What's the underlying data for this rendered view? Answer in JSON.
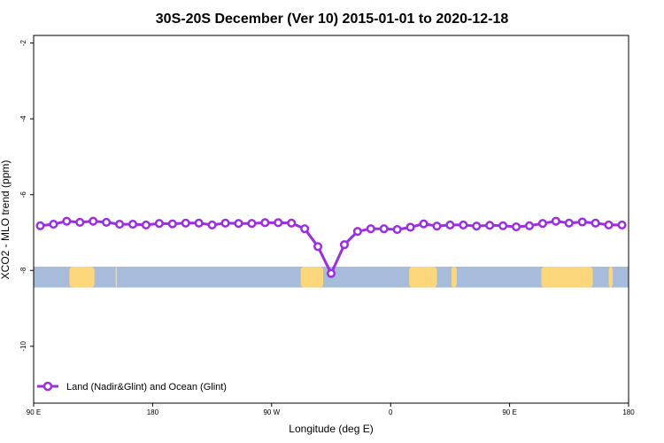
{
  "chart_data": {
    "type": "line",
    "title": "30S-20S December (Ver 10)   2015-01-01 to 2020-12-18",
    "xlabel": "Longitude (deg E)",
    "ylabel": "XCO2 - MLO trend (ppm)",
    "x_ticks": [
      {
        "x": 90,
        "label": "90 E"
      },
      {
        "x": 180,
        "label": "180"
      },
      {
        "x": 270,
        "label": "90 W"
      },
      {
        "x": 360,
        "label": "0"
      },
      {
        "x": 450,
        "label": "90 E"
      },
      {
        "x": 540,
        "label": "180"
      }
    ],
    "y_ticks": [
      {
        "y": -2,
        "label": "-2"
      },
      {
        "y": -4,
        "label": "-4"
      },
      {
        "y": -6,
        "label": "-6"
      },
      {
        "y": -8,
        "label": "-8"
      },
      {
        "y": -10,
        "label": "-10"
      }
    ],
    "xlim": [
      90,
      540
    ],
    "ylim": [
      -11.5,
      -1.8
    ],
    "grid": false,
    "legend_position": "bottom-left",
    "series": [
      {
        "name": "Land (Nadir&Glint) and Ocean (Glint)",
        "color": "#9b2fe0",
        "x": [
          95,
          105,
          115,
          125,
          135,
          145,
          155,
          165,
          175,
          185,
          195,
          205,
          215,
          225,
          235,
          245,
          255,
          265,
          275,
          285,
          295,
          305,
          315,
          325,
          335,
          345,
          355,
          365,
          375,
          385,
          395,
          405,
          415,
          425,
          435,
          445,
          455,
          465,
          475,
          485,
          495,
          505,
          515,
          525,
          535
        ],
        "y": [
          -6.82,
          -6.78,
          -6.7,
          -6.73,
          -6.7,
          -6.73,
          -6.78,
          -6.78,
          -6.8,
          -6.76,
          -6.77,
          -6.75,
          -6.75,
          -6.8,
          -6.75,
          -6.76,
          -6.76,
          -6.74,
          -6.74,
          -6.75,
          -6.9,
          -7.37,
          -8.08,
          -7.32,
          -6.97,
          -6.9,
          -6.9,
          -6.92,
          -6.86,
          -6.77,
          -6.83,
          -6.8,
          -6.8,
          -6.83,
          -6.81,
          -6.82,
          -6.85,
          -6.82,
          -6.76,
          -6.7,
          -6.75,
          -6.72,
          -6.75,
          -6.8,
          -6.8
        ]
      }
    ],
    "surface_band": {
      "y_top": -7.9,
      "y_bottom": -8.45,
      "ocean_color": "#a7bcdb",
      "land_color": "#fcd67a",
      "land_segments": [
        {
          "x0": 117,
          "x1": 136
        },
        {
          "x0": 152,
          "x1": 153
        },
        {
          "x0": 292,
          "x1": 309
        },
        {
          "x0": 374,
          "x1": 395
        },
        {
          "x0": 406,
          "x1": 410
        },
        {
          "x0": 474,
          "x1": 513
        },
        {
          "x0": 525,
          "x1": 528
        }
      ]
    }
  }
}
